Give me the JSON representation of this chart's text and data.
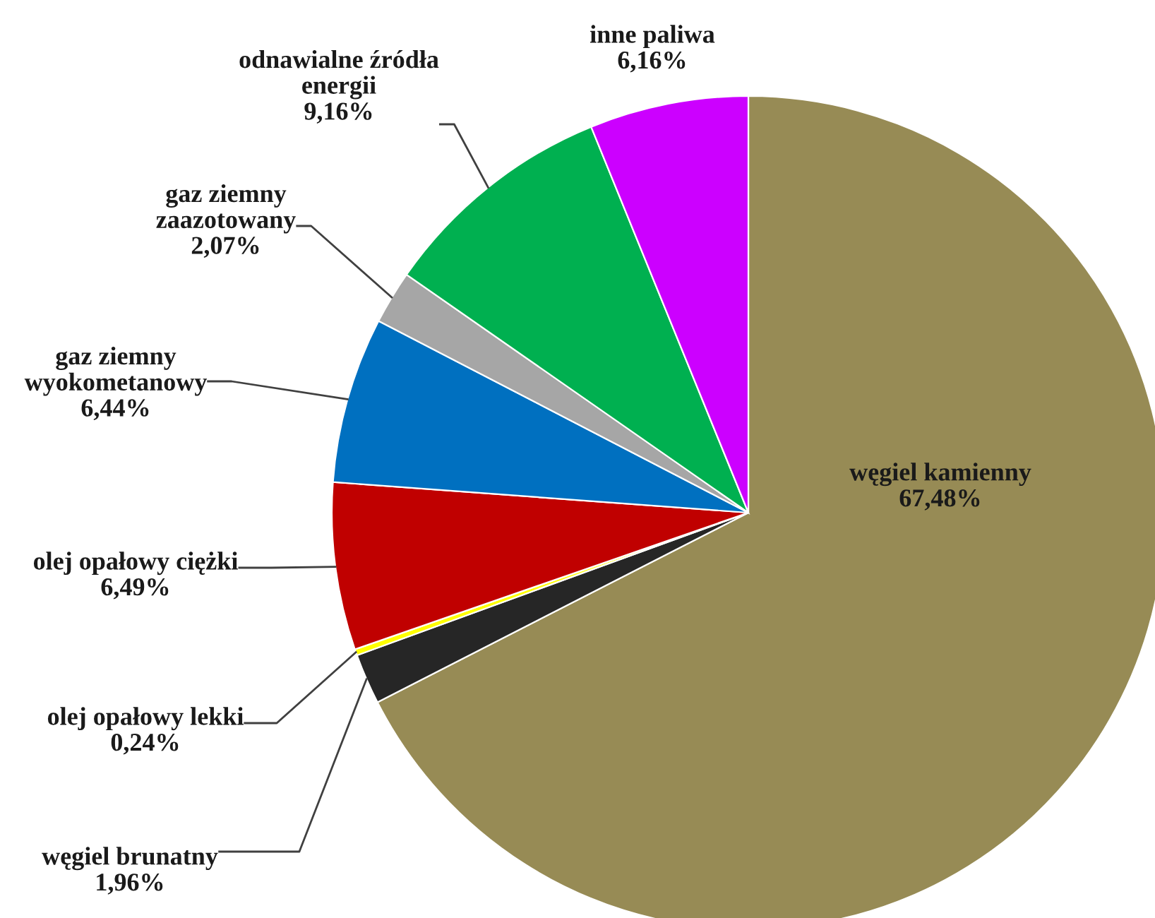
{
  "chart_data": {
    "type": "pie",
    "categories": [
      "węgiel kamienny",
      "węgiel brunatny",
      "olej opałowy lekki",
      "olej opałowy ciężki",
      "gaz ziemny\nwyokometanowy",
      "gaz ziemny\nzaazotowany",
      "odnawialne źródła\nenergii",
      "inne paliwa"
    ],
    "values": [
      67.48,
      1.96,
      0.24,
      6.49,
      6.44,
      2.07,
      9.16,
      6.16
    ],
    "colors": [
      "#978b55",
      "#262626",
      "#ffff00",
      "#c00000",
      "#0070c0",
      "#a6a6a6",
      "#00b050",
      "#cc00ff"
    ],
    "value_labels": [
      "67,48%",
      "1,96%",
      "0,24%",
      "6,49%",
      "6,44%",
      "2,07%",
      "9,16%",
      "6,16%"
    ],
    "legend": false
  }
}
